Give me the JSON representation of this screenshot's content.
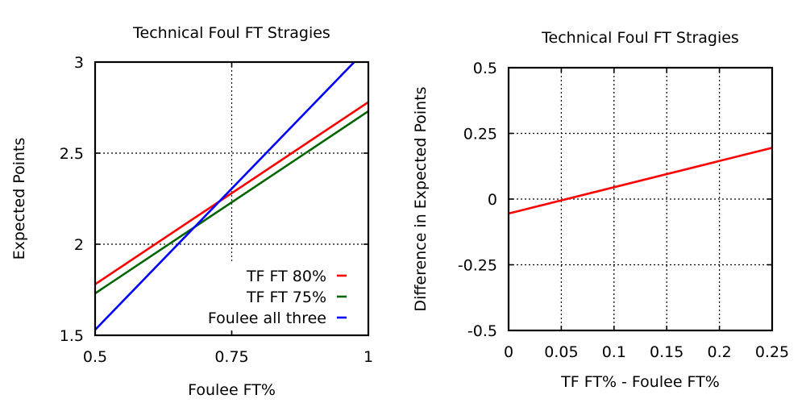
{
  "chart_data": [
    {
      "type": "line",
      "title": "Technical Foul FT Stragies",
      "xlabel": "Foulee FT%",
      "ylabel": "Expected Points",
      "xlim": [
        0.5,
        1
      ],
      "ylim": [
        1.5,
        3
      ],
      "xticks": [
        0.5,
        0.75,
        1
      ],
      "xtick_labels": [
        "0.5",
        "0.75",
        "1"
      ],
      "yticks": [
        1.5,
        2,
        2.5,
        3
      ],
      "ytick_labels": [
        "1.5",
        "2",
        "2.5",
        "3"
      ],
      "grid": true,
      "legend_position": "bottom-right",
      "series": [
        {
          "name": "TF FT 80%",
          "color": "#ff0000",
          "x": [
            0.5,
            1
          ],
          "y": [
            1.78,
            2.78
          ]
        },
        {
          "name": "TF FT 75%",
          "color": "#006400",
          "x": [
            0.5,
            1
          ],
          "y": [
            1.73,
            2.73
          ]
        },
        {
          "name": "Foulee all three",
          "color": "#0000ff",
          "x": [
            0.5,
            1
          ],
          "y": [
            1.53,
            3.08
          ]
        }
      ]
    },
    {
      "type": "line",
      "title": "Technical Foul FT Stragies",
      "xlabel": "TF FT% - Foulee FT%",
      "ylabel": "Difference in Expected Points",
      "xlim": [
        0,
        0.25
      ],
      "ylim": [
        -0.5,
        0.5
      ],
      "xticks": [
        0,
        0.05,
        0.1,
        0.15,
        0.2,
        0.25
      ],
      "xtick_labels": [
        "0",
        "0.05",
        "0.1",
        "0.15",
        "0.2",
        "0.25"
      ],
      "yticks": [
        -0.5,
        -0.25,
        0,
        0.25,
        0.5
      ],
      "ytick_labels": [
        "-0.5",
        "-0.25",
        "0",
        "0.25",
        "0.5"
      ],
      "grid": true,
      "series": [
        {
          "color": "#ff0000",
          "x": [
            0,
            0.25
          ],
          "y": [
            -0.055,
            0.195
          ]
        }
      ]
    }
  ]
}
